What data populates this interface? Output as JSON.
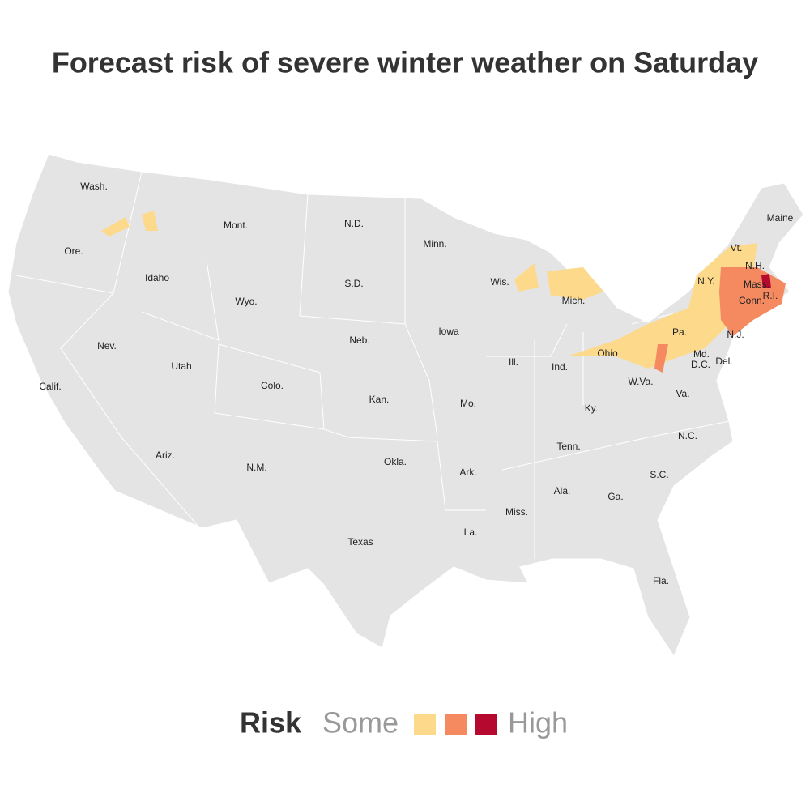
{
  "title": "Forecast risk of severe winter weather on Saturday",
  "map": {
    "land_color": "#e4e4e4",
    "border_color": "#ffffff",
    "labels": [
      "Wash.",
      "Ore.",
      "Calif.",
      "Idaho",
      "Nev.",
      "Mont.",
      "Wyo.",
      "Utah",
      "Ariz.",
      "Colo.",
      "N.M.",
      "N.D.",
      "S.D.",
      "Neb.",
      "Kan.",
      "Okla.",
      "Texas",
      "Minn.",
      "Iowa",
      "Mo.",
      "Ark.",
      "La.",
      "Wis.",
      "Ill.",
      "Miss.",
      "Mich.",
      "Ind.",
      "Ky.",
      "Tenn.",
      "Ala.",
      "Ohio",
      "W.Va.",
      "Ga.",
      "Fla.",
      "Pa.",
      "Va.",
      "N.C.",
      "S.C.",
      "N.Y.",
      "Vt.",
      "N.H.",
      "Maine",
      "Mass.",
      "R.I.",
      "Conn.",
      "N.J.",
      "Md.",
      "D.C.",
      "Del."
    ]
  },
  "legend": {
    "title": "Risk",
    "low_label": "Some",
    "high_label": "High",
    "colors": [
      "#fdd98b",
      "#f58a61",
      "#b5092f"
    ]
  }
}
